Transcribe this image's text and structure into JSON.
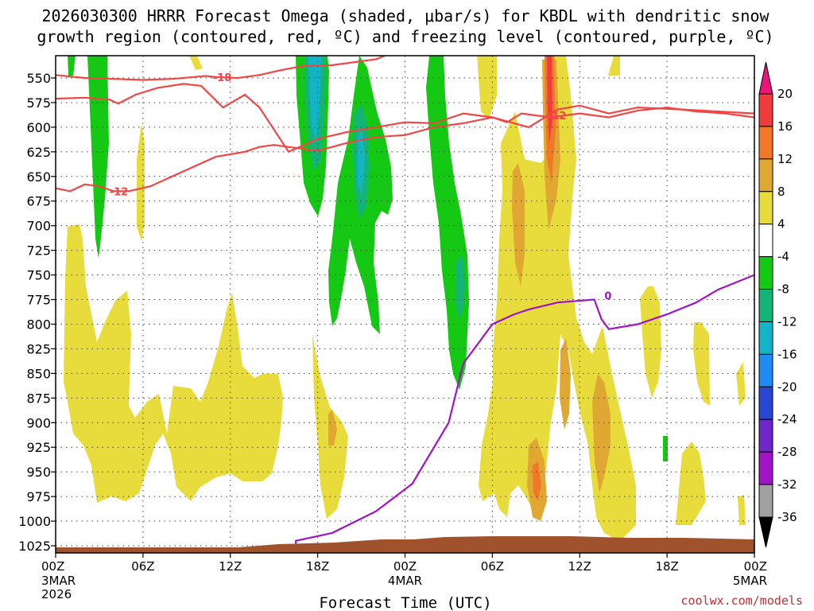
{
  "title": {
    "line1": "2026030300 HRRR Forecast Omega (shaded, μbar/s) for KBDL with dendritic snow",
    "line2": "growth region (contoured, red, ºC) and freezing level (contoured, purple, ºC)"
  },
  "credit": "coolwx.com/models",
  "chart_data": {
    "type": "time-height contour",
    "xlabel": "Forecast Time (UTC)",
    "x_ticks": [
      {
        "hour": 0,
        "label": "00Z",
        "sub1": "3MAR",
        "sub2": "2026"
      },
      {
        "hour": 6,
        "label": "06Z",
        "sub1": "",
        "sub2": ""
      },
      {
        "hour": 12,
        "label": "12Z",
        "sub1": "",
        "sub2": ""
      },
      {
        "hour": 18,
        "label": "18Z",
        "sub1": "",
        "sub2": ""
      },
      {
        "hour": 24,
        "label": "00Z",
        "sub1": "4MAR",
        "sub2": ""
      },
      {
        "hour": 30,
        "label": "06Z",
        "sub1": "",
        "sub2": ""
      },
      {
        "hour": 36,
        "label": "12Z",
        "sub1": "",
        "sub2": ""
      },
      {
        "hour": 42,
        "label": "18Z",
        "sub1": "",
        "sub2": ""
      },
      {
        "hour": 48,
        "label": "00Z",
        "sub1": "5MAR",
        "sub2": ""
      }
    ],
    "x_range_hours": [
      0,
      48
    ],
    "y_ticks_hpa": [
      550,
      575,
      600,
      625,
      650,
      675,
      700,
      725,
      750,
      775,
      800,
      825,
      850,
      875,
      900,
      925,
      950,
      975,
      1000,
      1025
    ],
    "y_range_hpa": [
      525,
      1035
    ],
    "grid": true,
    "colorbar": {
      "labels": [
        "20",
        "16",
        "12",
        "8",
        "4",
        "-4",
        "-8",
        "-12",
        "-16",
        "-20",
        "-24",
        "-28",
        "-32",
        "-36"
      ],
      "colors": [
        "#e8157a",
        "#f03c3c",
        "#f07828",
        "#e0a832",
        "#e8dc3c",
        "#ffffff",
        "#14c814",
        "#14b478",
        "#14b4c8",
        "#1e8cf0",
        "#2846d2",
        "#6e28c8",
        "#a014c8",
        "#a0a0a0",
        "#000000"
      ]
    },
    "omega_colors": {
      "lift_weak": "#14c814",
      "lift_mod": "#14b4c8",
      "sink_weak": "#e8dc3c",
      "sink_mod": "#e0a832",
      "sink_strong": "#f07828",
      "sink_max": "#f03c3c"
    },
    "contour_colors": {
      "dgz": "#f04646",
      "freezing": "#a014c8",
      "terrain": "#a0522d"
    },
    "dgz_contours": [
      {
        "label": "-18",
        "points": [
          [
            0,
            547
          ],
          [
            2,
            550
          ],
          [
            4,
            551
          ],
          [
            6,
            552
          ],
          [
            8,
            551
          ],
          [
            9.5,
            549
          ],
          [
            10.3,
            548
          ],
          [
            11,
            549
          ],
          [
            12.5,
            550
          ],
          [
            14,
            547
          ],
          [
            15.5,
            542
          ],
          [
            17,
            538
          ],
          [
            19,
            537
          ],
          [
            20.5,
            534
          ],
          [
            21.5,
            532
          ],
          [
            22,
            531
          ],
          [
            23,
            525
          ],
          [
            48,
            525
          ]
        ]
      },
      {
        "label": "-12",
        "points": [
          [
            0,
            571
          ],
          [
            2,
            570
          ],
          [
            3.7,
            572
          ],
          [
            4.3,
            576
          ],
          [
            5.5,
            567
          ],
          [
            7,
            560
          ],
          [
            8.8,
            556
          ],
          [
            10,
            558
          ],
          [
            11.5,
            580
          ],
          [
            13,
            567
          ],
          [
            14,
            580
          ],
          [
            16,
            625
          ],
          [
            18,
            612
          ],
          [
            20,
            605
          ],
          [
            22,
            600
          ],
          [
            24,
            595
          ],
          [
            26,
            596
          ],
          [
            28,
            586
          ],
          [
            30,
            590
          ],
          [
            31,
            595
          ],
          [
            32,
            586
          ],
          [
            34,
            590
          ],
          [
            36,
            586
          ],
          [
            38,
            590
          ],
          [
            40,
            583
          ],
          [
            42,
            580
          ],
          [
            44,
            584
          ],
          [
            46,
            586
          ],
          [
            48,
            590
          ]
        ]
      },
      {
        "label": "-12",
        "points": [
          [
            0,
            662
          ],
          [
            1,
            665
          ],
          [
            2,
            658
          ],
          [
            3,
            660
          ],
          [
            4,
            665
          ],
          [
            5,
            665
          ],
          [
            6.5,
            660
          ],
          [
            8,
            650
          ],
          [
            9.5,
            640
          ],
          [
            11,
            630
          ],
          [
            13,
            625
          ],
          [
            14,
            620
          ],
          [
            15,
            618
          ],
          [
            18,
            624
          ],
          [
            20,
            616
          ],
          [
            22,
            610
          ],
          [
            24,
            608
          ],
          [
            26,
            600
          ],
          [
            28,
            596
          ],
          [
            30,
            590
          ],
          [
            31.5,
            596
          ],
          [
            32.5,
            600
          ],
          [
            34.5,
            582
          ],
          [
            36,
            578
          ],
          [
            38,
            586
          ],
          [
            40,
            580
          ],
          [
            43,
            582
          ],
          [
            45.5,
            584
          ],
          [
            48,
            586
          ]
        ]
      }
    ],
    "freezing_contour": {
      "label": "0",
      "points": [
        [
          16.5,
          1090
        ],
        [
          16.5,
          1020
        ],
        [
          19,
          1012
        ],
        [
          22,
          990
        ],
        [
          24.5,
          962
        ],
        [
          27,
          900
        ],
        [
          28,
          840
        ],
        [
          30,
          800
        ],
        [
          31.5,
          790
        ],
        [
          32.5,
          785
        ],
        [
          34.5,
          778
        ],
        [
          37,
          775
        ],
        [
          37.5,
          795
        ],
        [
          38,
          805
        ],
        [
          40,
          800
        ],
        [
          42,
          790
        ],
        [
          44,
          778
        ],
        [
          45.5,
          765
        ],
        [
          48,
          750
        ]
      ]
    },
    "terrain_top_hpa": 1028
  }
}
